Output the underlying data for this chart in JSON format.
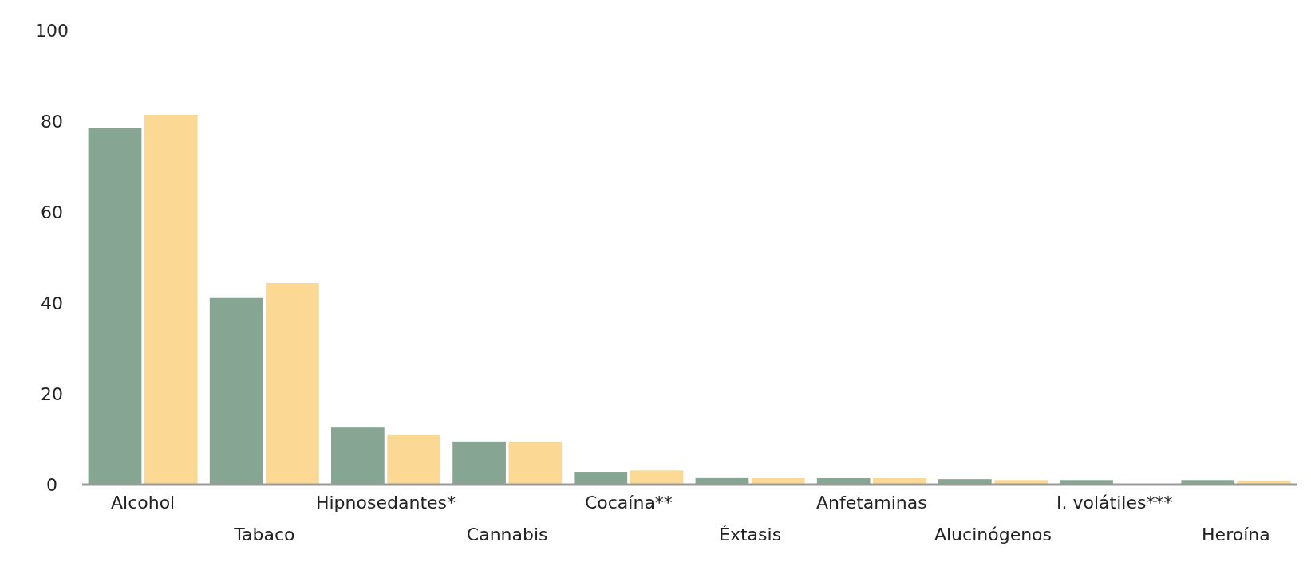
{
  "chart_data": {
    "type": "bar",
    "categories": [
      "Alcohol",
      "Tabaco",
      "Hipnosedantes*",
      "Cannabis",
      "Cocaína**",
      "Éxtasis",
      "Anfetaminas",
      "Alucinógenos",
      "I. volátiles***",
      "Heroína"
    ],
    "series": [
      {
        "color": "#86a693",
        "values": [
          78.5,
          41.1,
          12.6,
          9.5,
          2.8,
          1.6,
          1.4,
          1.2,
          1.0,
          1.0
        ]
      },
      {
        "color": "#fbd994",
        "values": [
          81.4,
          44.4,
          10.9,
          9.4,
          3.1,
          1.4,
          1.4,
          1.0,
          null,
          0.9
        ]
      }
    ],
    "ylim": [
      0,
      100
    ],
    "yticks": [
      0,
      20,
      40,
      60,
      80,
      100
    ],
    "grid": false
  }
}
